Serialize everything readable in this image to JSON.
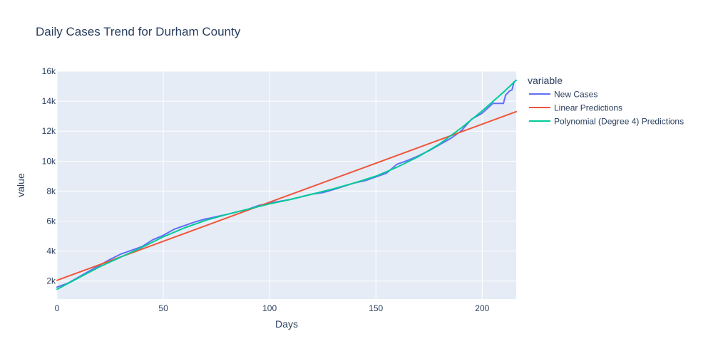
{
  "chart_data": {
    "type": "line",
    "title": "Daily Cases Trend for Durham County",
    "xlabel": "Days",
    "ylabel": "value",
    "xlim": [
      0,
      216
    ],
    "ylim": [
      800,
      16000
    ],
    "x_ticks": [
      0,
      50,
      100,
      150,
      200
    ],
    "y_ticks": [
      2000,
      4000,
      6000,
      8000,
      10000,
      12000,
      14000,
      16000
    ],
    "y_tick_labels": [
      "2k",
      "4k",
      "6k",
      "8k",
      "10k",
      "12k",
      "14k",
      "16k"
    ],
    "grid": true,
    "legend": {
      "title": "variable",
      "placement": "right"
    },
    "series": [
      {
        "name": "New Cases",
        "color": "#636efa",
        "points": [
          [
            0,
            1600
          ],
          [
            5,
            1850
          ],
          [
            10,
            2250
          ],
          [
            15,
            2650
          ],
          [
            20,
            3050
          ],
          [
            25,
            3450
          ],
          [
            30,
            3800
          ],
          [
            35,
            4050
          ],
          [
            40,
            4300
          ],
          [
            45,
            4750
          ],
          [
            50,
            5050
          ],
          [
            55,
            5450
          ],
          [
            60,
            5700
          ],
          [
            65,
            5950
          ],
          [
            70,
            6150
          ],
          [
            72,
            6200
          ],
          [
            75,
            6300
          ],
          [
            80,
            6450
          ],
          [
            90,
            6800
          ],
          [
            95,
            7050
          ],
          [
            100,
            7200
          ],
          [
            110,
            7450
          ],
          [
            120,
            7800
          ],
          [
            125,
            7900
          ],
          [
            130,
            8100
          ],
          [
            140,
            8550
          ],
          [
            145,
            8700
          ],
          [
            150,
            8950
          ],
          [
            155,
            9200
          ],
          [
            160,
            9800
          ],
          [
            165,
            10050
          ],
          [
            170,
            10350
          ],
          [
            175,
            10700
          ],
          [
            180,
            11100
          ],
          [
            185,
            11500
          ],
          [
            190,
            12000
          ],
          [
            195,
            12800
          ],
          [
            200,
            13200
          ],
          [
            205,
            13850
          ],
          [
            208,
            13850
          ],
          [
            210,
            13850
          ],
          [
            211,
            14400
          ],
          [
            213,
            14700
          ],
          [
            214,
            14750
          ],
          [
            215,
            15300
          ]
        ]
      },
      {
        "name": "Linear Predictions",
        "color": "#ef553b",
        "points": [
          [
            0,
            2050
          ],
          [
            216,
            13300
          ]
        ]
      },
      {
        "name": "Polynomial (Degree 4) Predictions",
        "color": "#00cc96",
        "points": [
          [
            0,
            1450
          ],
          [
            10,
            2200
          ],
          [
            20,
            2950
          ],
          [
            30,
            3600
          ],
          [
            40,
            4250
          ],
          [
            50,
            4950
          ],
          [
            60,
            5550
          ],
          [
            70,
            6050
          ],
          [
            80,
            6450
          ],
          [
            90,
            6800
          ],
          [
            100,
            7150
          ],
          [
            110,
            7450
          ],
          [
            120,
            7800
          ],
          [
            130,
            8150
          ],
          [
            140,
            8550
          ],
          [
            150,
            9000
          ],
          [
            160,
            9600
          ],
          [
            170,
            10300
          ],
          [
            180,
            11150
          ],
          [
            190,
            12200
          ],
          [
            200,
            13350
          ],
          [
            210,
            14600
          ],
          [
            216,
            15400
          ]
        ]
      }
    ]
  }
}
